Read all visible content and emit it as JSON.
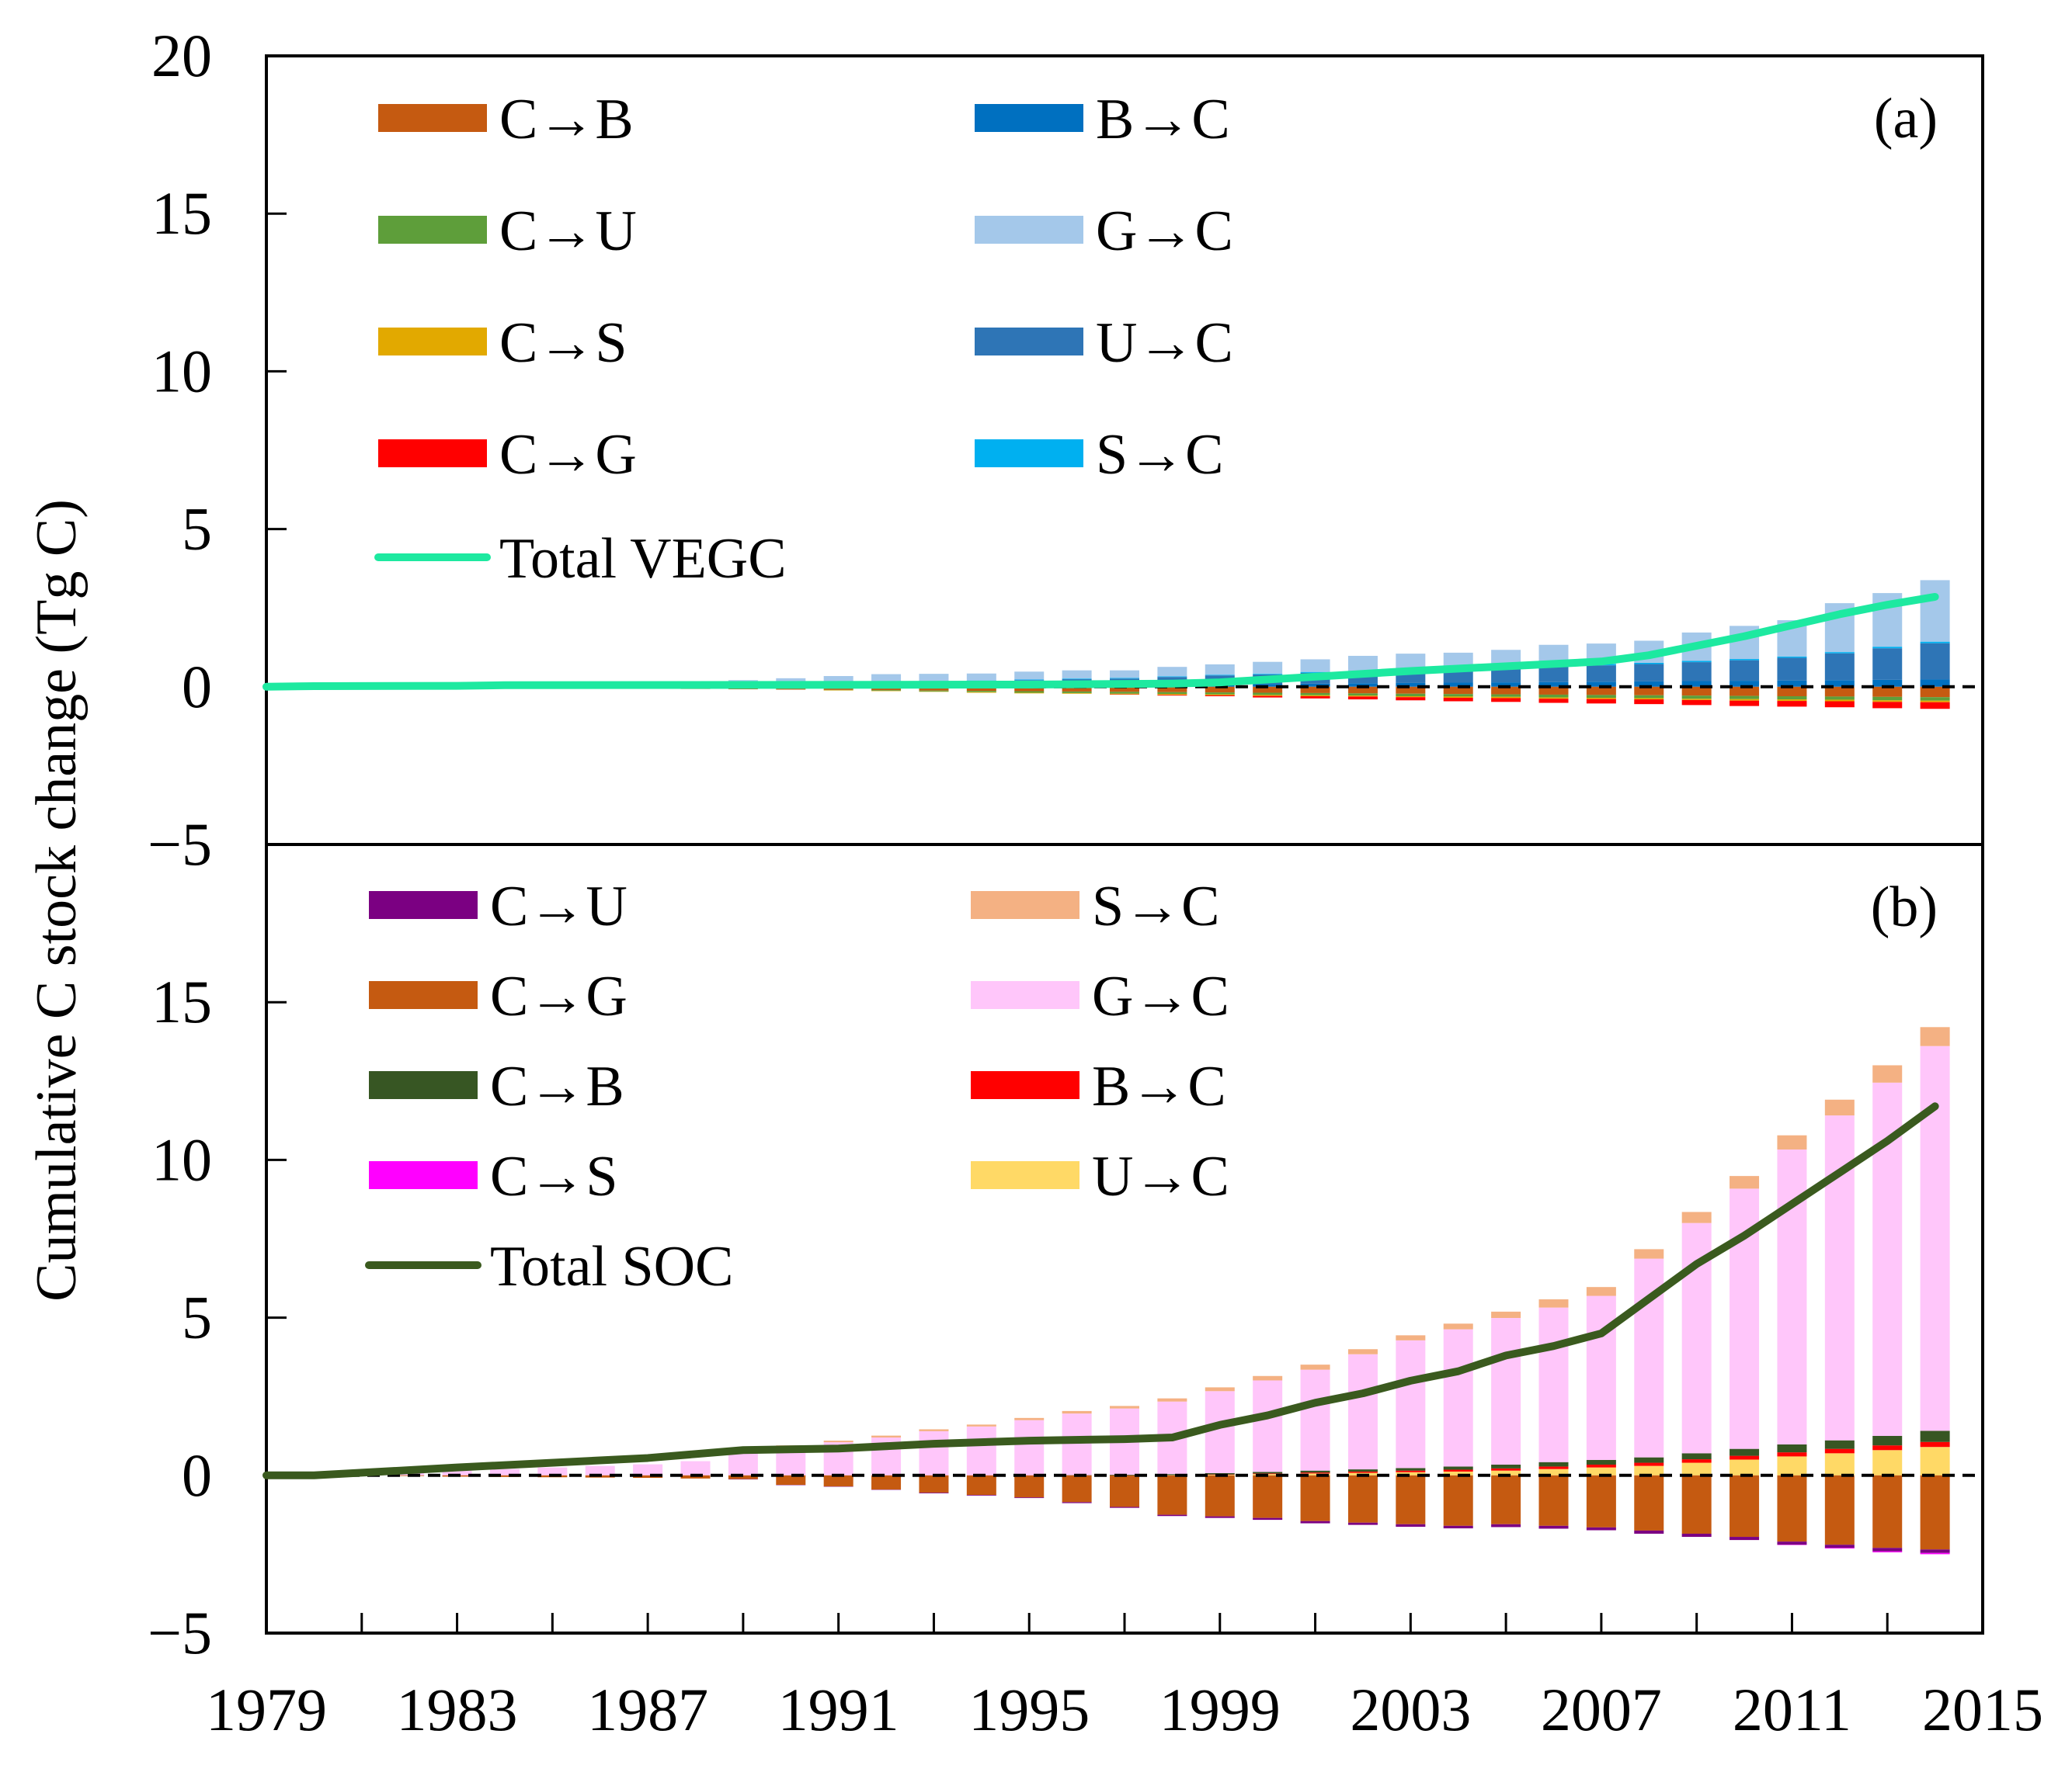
{
  "chart_data": {
    "type": "bar",
    "ylabel": "Cumulative C stock change (Tg C)",
    "xlabel": "",
    "x_ticks": [
      "1979",
      "1983",
      "1987",
      "1991",
      "1995",
      "1999",
      "2003",
      "2007",
      "2011",
      "2015"
    ],
    "y_ticks": [
      "20",
      "15",
      "10",
      "5",
      "0",
      "−5"
    ],
    "y_ticks_b": [
      "15",
      "10",
      "5",
      "0",
      "−5"
    ],
    "years": [
      1980,
      1981,
      1982,
      1983,
      1984,
      1985,
      1986,
      1987,
      1988,
      1989,
      1990,
      1991,
      1992,
      1993,
      1994,
      1995,
      1996,
      1997,
      1998,
      1999,
      2000,
      2001,
      2002,
      2003,
      2004,
      2005,
      2006,
      2007,
      2008,
      2009,
      2010,
      2011,
      2012,
      2013,
      2014
    ],
    "panels": [
      {
        "tag": "(a)",
        "ylim": [
          -5,
          20
        ],
        "xlim": [
          1979,
          2015
        ],
        "series": [
          {
            "name": "C→B",
            "color": "#c55a11",
            "kind": "negative",
            "values": [
              0,
              0,
              -0.01,
              -0.02,
              -0.03,
              -0.04,
              -0.05,
              -0.06,
              -0.07,
              -0.08,
              -0.09,
              -0.1,
              -0.11,
              -0.12,
              -0.13,
              -0.14,
              -0.15,
              -0.16,
              -0.17,
              -0.18,
              -0.19,
              -0.2,
              -0.21,
              -0.22,
              -0.23,
              -0.24,
              -0.25,
              -0.26,
              -0.27,
              -0.28,
              -0.29,
              -0.3,
              -0.31,
              -0.32,
              -0.33
            ]
          },
          {
            "name": "C→U",
            "color": "#5e9e3a",
            "kind": "negative",
            "values": [
              0,
              0,
              0,
              0,
              0,
              0,
              0,
              0,
              0,
              0,
              0,
              -0.01,
              -0.02,
              -0.03,
              -0.04,
              -0.05,
              -0.05,
              -0.06,
              -0.06,
              -0.06,
              -0.07,
              -0.07,
              -0.07,
              -0.08,
              -0.08,
              -0.08,
              -0.09,
              -0.09,
              -0.09,
              -0.1,
              -0.1,
              -0.1,
              -0.1,
              -0.11,
              -0.11
            ]
          },
          {
            "name": "C→S",
            "color": "#e2a900",
            "kind": "negative",
            "values": [
              0,
              0,
              0,
              0,
              0,
              0,
              0,
              0,
              0,
              0,
              0,
              -0.01,
              -0.01,
              -0.01,
              -0.02,
              -0.02,
              -0.02,
              -0.02,
              -0.03,
              -0.03,
              -0.03,
              -0.03,
              -0.03,
              -0.03,
              -0.04,
              -0.04,
              -0.04,
              -0.04,
              -0.04,
              -0.04,
              -0.05,
              -0.05,
              -0.05,
              -0.05,
              -0.05
            ]
          },
          {
            "name": "C→G",
            "color": "#ff0000",
            "kind": "negative",
            "values": [
              0,
              0,
              0,
              0,
              0,
              0,
              0,
              0,
              0,
              0,
              0,
              0,
              0,
              0,
              0,
              0,
              0,
              -0.01,
              -0.02,
              -0.03,
              -0.05,
              -0.07,
              -0.09,
              -0.1,
              -0.11,
              -0.12,
              -0.13,
              -0.14,
              -0.15,
              -0.16,
              -0.17,
              -0.18,
              -0.19,
              -0.2,
              -0.21
            ]
          },
          {
            "name": "B→C",
            "color": "#0070c0",
            "kind": "positive",
            "values": [
              0,
              0,
              0,
              0,
              0.01,
              0.01,
              0.01,
              0.02,
              0.02,
              0.02,
              0.03,
              0.03,
              0.04,
              0.04,
              0.05,
              0.05,
              0.06,
              0.06,
              0.07,
              0.08,
              0.09,
              0.1,
              0.11,
              0.12,
              0.13,
              0.14,
              0.15,
              0.16,
              0.17,
              0.18,
              0.19,
              0.2,
              0.21,
              0.22,
              0.23
            ]
          },
          {
            "name": "U→C",
            "color": "#2e75b6",
            "kind": "positive",
            "values": [
              0,
              0,
              0,
              0,
              0.01,
              0.02,
              0.03,
              0.04,
              0.05,
              0.06,
              0.07,
              0.08,
              0.1,
              0.12,
              0.14,
              0.16,
              0.18,
              0.2,
              0.24,
              0.28,
              0.3,
              0.34,
              0.36,
              0.38,
              0.42,
              0.45,
              0.5,
              0.52,
              0.55,
              0.6,
              0.65,
              0.72,
              0.85,
              1.0,
              1.15
            ]
          },
          {
            "name": "S→C",
            "color": "#00b0f0",
            "kind": "positive",
            "values": [
              0,
              0,
              0,
              0,
              0,
              0,
              0,
              0,
              0,
              0,
              0.01,
              0.01,
              0.01,
              0.01,
              0.01,
              0.02,
              0.02,
              0.02,
              0.02,
              0.02,
              0.02,
              0.03,
              0.03,
              0.03,
              0.03,
              0.03,
              0.03,
              0.04,
              0.04,
              0.04,
              0.04,
              0.04,
              0.04,
              0.05,
              0.05
            ]
          },
          {
            "name": "G→C",
            "color": "#a4c8ea",
            "kind": "positive",
            "values": [
              0,
              0,
              0,
              0,
              0.02,
              0.04,
              0.06,
              0.08,
              0.1,
              0.13,
              0.16,
              0.22,
              0.25,
              0.24,
              0.22,
              0.25,
              0.26,
              0.24,
              0.3,
              0.33,
              0.38,
              0.4,
              0.48,
              0.52,
              0.5,
              0.55,
              0.65,
              0.65,
              0.7,
              0.9,
              1.05,
              1.15,
              1.55,
              1.7,
              1.95
            ]
          }
        ],
        "total": {
          "name": "Total VEGC",
          "color": "#1de9a0",
          "x": [
            1979,
            1980,
            1983,
            1984,
            1990,
            1995,
            1998,
            1999,
            2003,
            2007,
            2008,
            2009,
            2010,
            2011,
            2012,
            2013,
            2014
          ],
          "values": [
            0,
            0.02,
            0.03,
            0.05,
            0.06,
            0.07,
            0.1,
            0.14,
            0.5,
            0.8,
            1.0,
            1.3,
            1.6,
            1.95,
            2.3,
            2.6,
            2.85
          ]
        },
        "legend_left": [
          "C→B",
          "C→U",
          "C→S",
          "C→G"
        ],
        "legend_right": [
          "B→C",
          "G→C",
          "U→C",
          "S→C"
        ]
      },
      {
        "tag": "(b)",
        "ylim": [
          -5,
          20
        ],
        "xlim": [
          1979,
          2015
        ],
        "series": [
          {
            "name": "C→G",
            "color": "#c55a11",
            "kind": "negative",
            "values": [
              0,
              0,
              -0.02,
              -0.04,
              -0.05,
              -0.06,
              -0.07,
              -0.08,
              -0.1,
              -0.12,
              -0.3,
              -0.35,
              -0.45,
              -0.55,
              -0.62,
              -0.7,
              -0.85,
              -1.0,
              -1.25,
              -1.3,
              -1.35,
              -1.45,
              -1.5,
              -1.55,
              -1.6,
              -1.55,
              -1.6,
              -1.65,
              -1.75,
              -1.85,
              -1.95,
              -2.1,
              -2.2,
              -2.3,
              -2.35
            ]
          },
          {
            "name": "C→U",
            "color": "#7b0082",
            "kind": "negative",
            "values": [
              0,
              0,
              0,
              0,
              0,
              0,
              0,
              0,
              0,
              -0.01,
              -0.01,
              -0.01,
              -0.01,
              -0.02,
              -0.02,
              -0.02,
              -0.03,
              -0.03,
              -0.04,
              -0.05,
              -0.06,
              -0.07,
              -0.07,
              -0.08,
              -0.08,
              -0.09,
              -0.09,
              -0.09,
              -0.1,
              -0.1,
              -0.1,
              -0.1,
              -0.1,
              -0.11,
              -0.11
            ]
          },
          {
            "name": "C→S",
            "color": "#ff00ff",
            "kind": "negative",
            "values": [
              0,
              0,
              0,
              0,
              0,
              0,
              0,
              0,
              0,
              0,
              0,
              0,
              0,
              0,
              0,
              0,
              0,
              0,
              0,
              0,
              0,
              0,
              0,
              0,
              0,
              0,
              0,
              0,
              0,
              0,
              0,
              -0.01,
              -0.02,
              -0.03,
              -0.04
            ]
          },
          {
            "name": "U→C",
            "color": "#ffd966",
            "kind": "positive",
            "values": [
              0,
              0,
              0,
              0,
              0,
              0,
              0,
              0,
              0,
              0,
              0,
              0,
              0,
              0,
              0,
              0,
              0,
              0,
              0.01,
              0.02,
              0.04,
              0.06,
              0.08,
              0.1,
              0.12,
              0.15,
              0.2,
              0.25,
              0.3,
              0.4,
              0.5,
              0.6,
              0.7,
              0.8,
              0.9
            ]
          },
          {
            "name": "B→C",
            "color": "#ff0000",
            "kind": "positive",
            "values": [
              0,
              0,
              0,
              0,
              0,
              0,
              0,
              0,
              0,
              0,
              0,
              0,
              0,
              0,
              0,
              0,
              0,
              0,
              0,
              0.01,
              0.02,
              0.03,
              0.04,
              0.05,
              0.06,
              0.07,
              0.08,
              0.09,
              0.1,
              0.11,
              0.12,
              0.13,
              0.14,
              0.15,
              0.16
            ]
          },
          {
            "name": "C→B",
            "color": "#375623",
            "kind": "positive",
            "values": [
              0,
              0,
              0,
              0,
              0,
              0,
              0,
              0,
              0,
              0,
              0,
              0,
              0,
              0,
              0,
              0,
              0.01,
              0.02,
              0.03,
              0.04,
              0.05,
              0.06,
              0.07,
              0.08,
              0.1,
              0.12,
              0.14,
              0.15,
              0.17,
              0.19,
              0.22,
              0.25,
              0.27,
              0.3,
              0.35
            ]
          },
          {
            "name": "G→C",
            "color": "#ffc6fa",
            "kind": "positive",
            "values": [
              0.01,
              0.03,
              0.1,
              0.15,
              0.2,
              0.25,
              0.3,
              0.35,
              0.45,
              0.7,
              0.9,
              1.05,
              1.2,
              1.4,
              1.55,
              1.75,
              1.95,
              2.1,
              2.3,
              2.6,
              2.9,
              3.2,
              3.65,
              4.05,
              4.35,
              4.65,
              4.9,
              5.2,
              6.3,
              7.3,
              8.25,
              9.35,
              10.3,
              11.2,
              12.2
            ]
          },
          {
            "name": "S→C",
            "color": "#f4b183",
            "kind": "positive",
            "values": [
              0,
              0,
              0,
              0,
              0,
              0,
              0,
              0,
              0,
              0,
              0.05,
              0.05,
              0.06,
              0.06,
              0.06,
              0.07,
              0.08,
              0.08,
              0.1,
              0.12,
              0.14,
              0.16,
              0.16,
              0.16,
              0.18,
              0.2,
              0.26,
              0.28,
              0.3,
              0.35,
              0.4,
              0.45,
              0.5,
              0.55,
              0.6
            ]
          }
        ],
        "total": {
          "name": "Total SOC",
          "color": "#3a5a1e",
          "x": [
            1979,
            1980,
            1983,
            1987,
            1989,
            1991,
            1993,
            1995,
            1997,
            1998,
            1999,
            2000,
            2001,
            2002,
            2003,
            2004,
            2005,
            2006,
            2007,
            2008,
            2009,
            2010,
            2011,
            2012,
            2013,
            2014
          ],
          "values": [
            0,
            0,
            0.25,
            0.55,
            0.8,
            0.85,
            1.0,
            1.1,
            1.15,
            1.2,
            1.6,
            1.9,
            2.3,
            2.6,
            3.0,
            3.3,
            3.8,
            4.1,
            4.5,
            5.6,
            6.7,
            7.6,
            8.6,
            9.6,
            10.6,
            11.7
          ]
        },
        "legend_left": [
          "C→U",
          "C→G",
          "C→B",
          "C→S"
        ],
        "legend_right": [
          "S→C",
          "G→C",
          "B→C",
          "U→C"
        ]
      }
    ]
  }
}
